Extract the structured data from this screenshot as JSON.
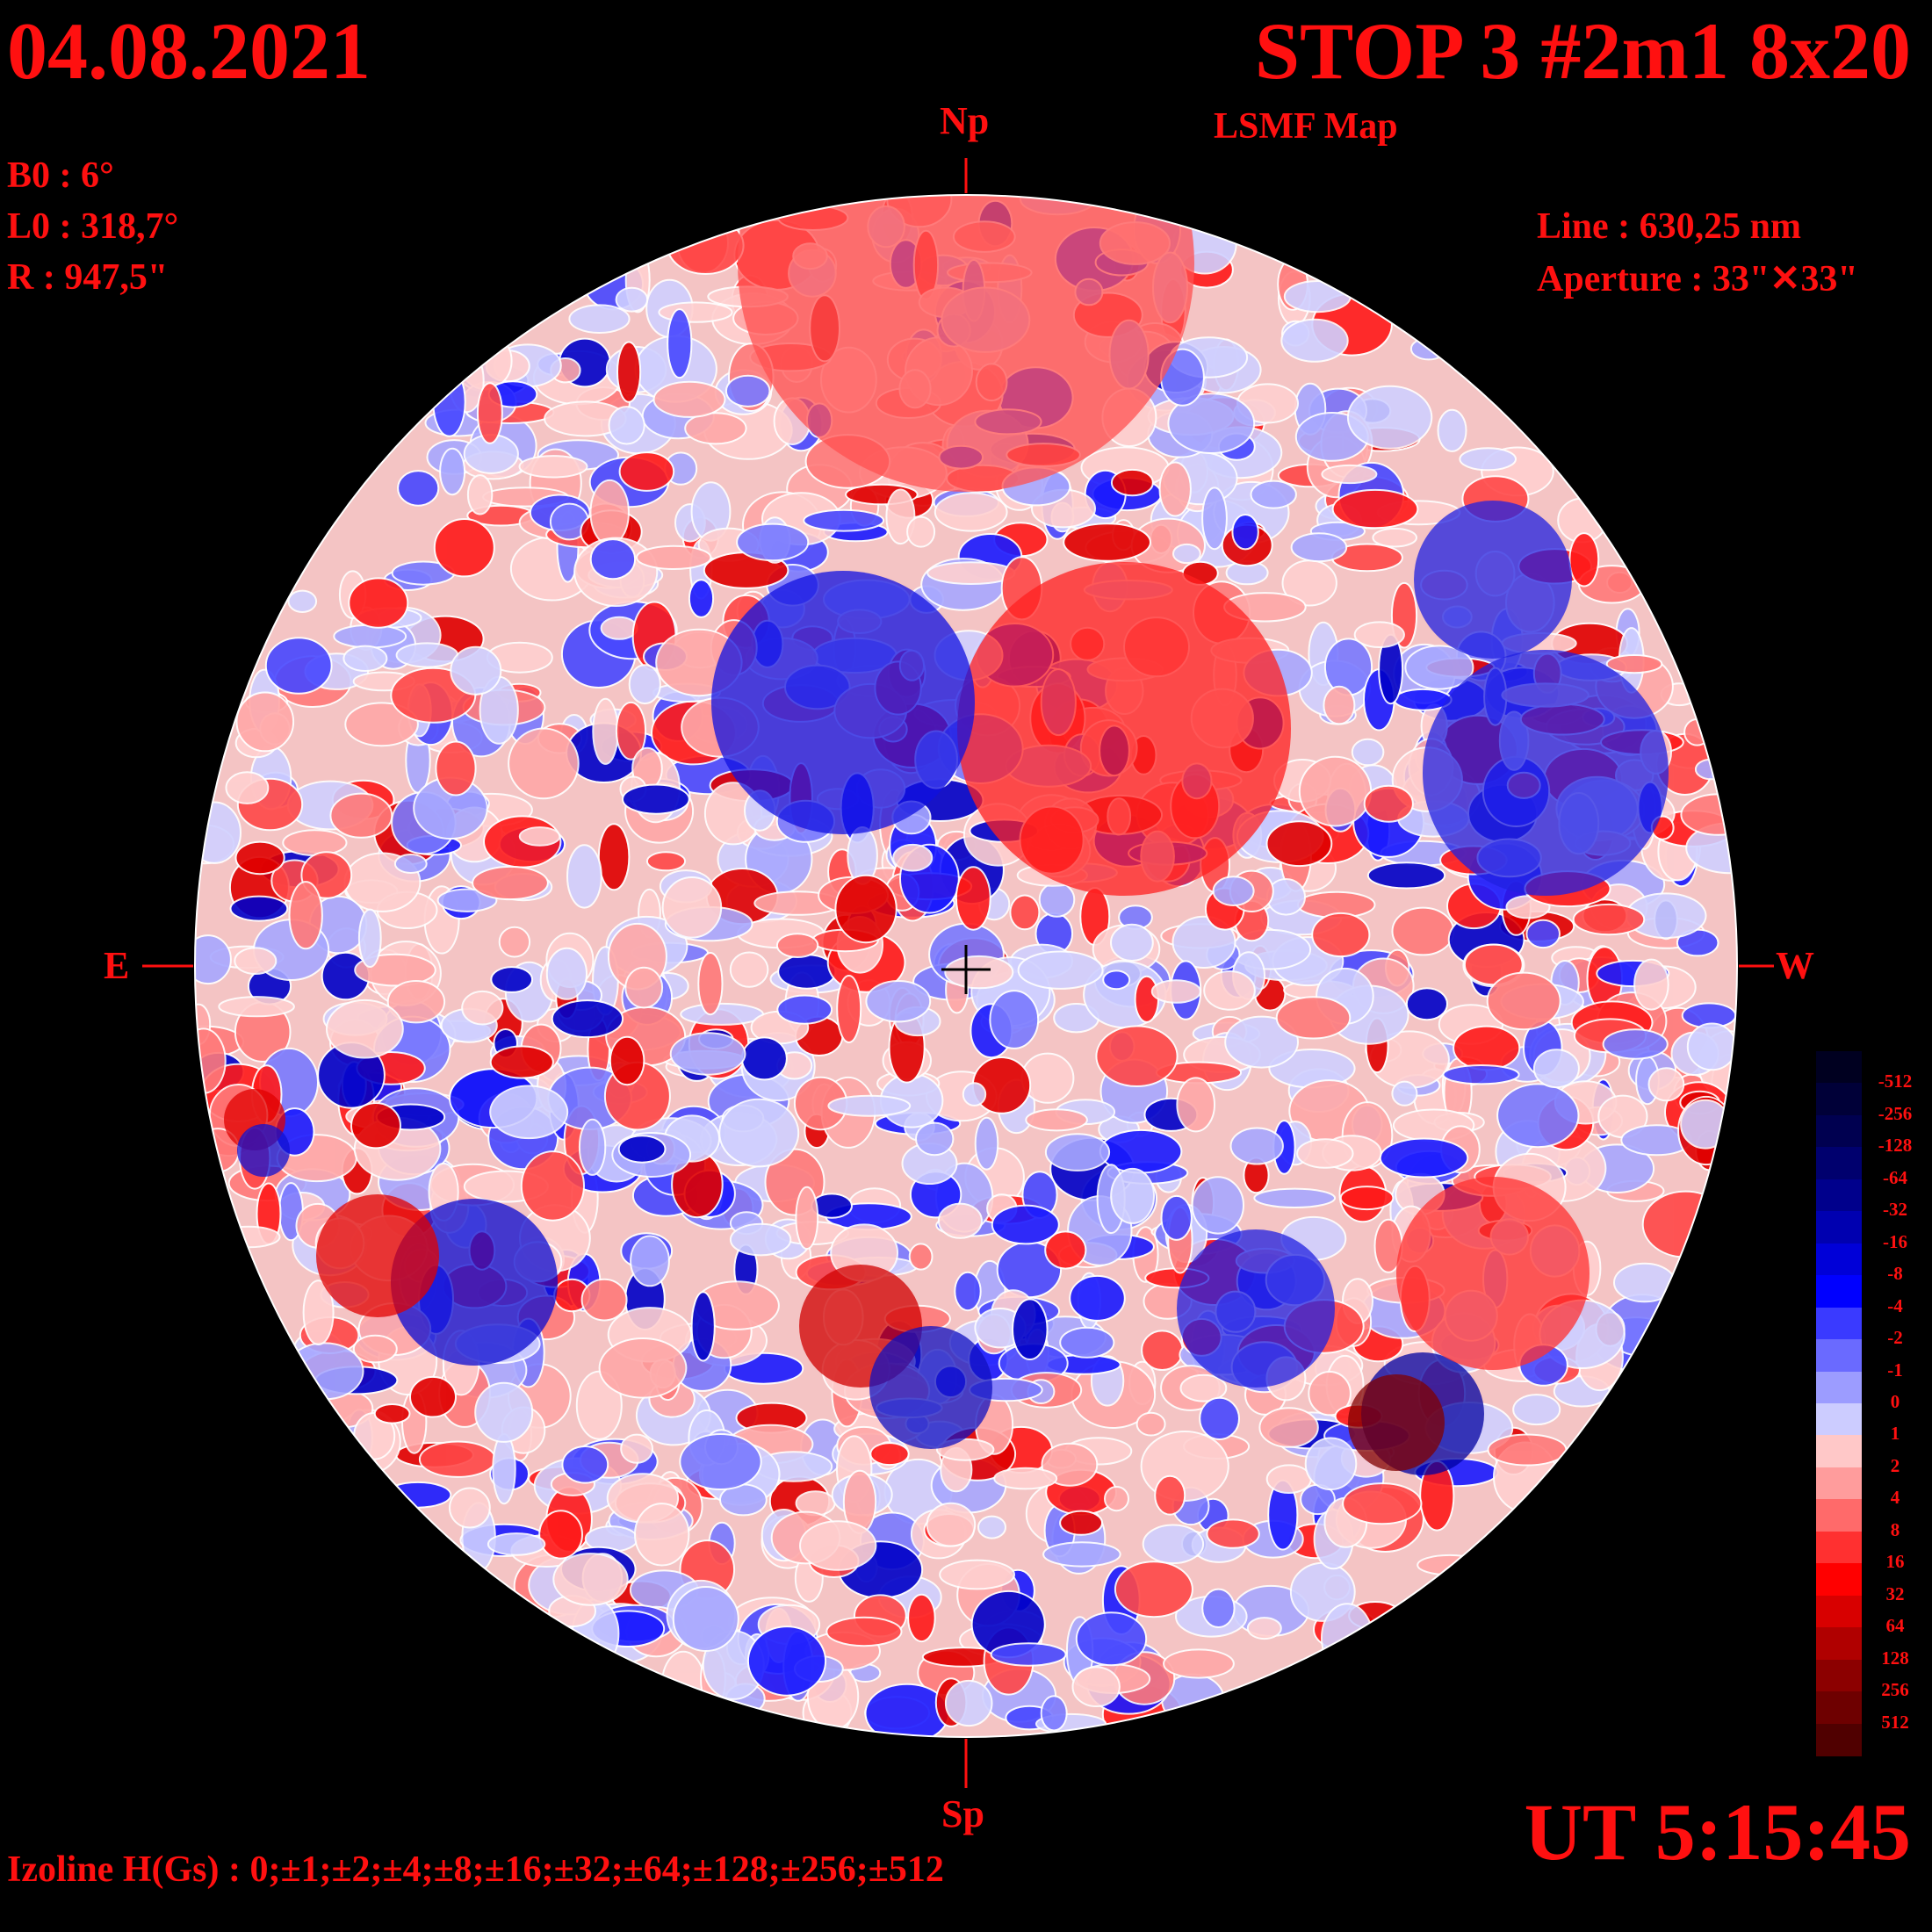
{
  "header": {
    "date": "04.08.2021",
    "title": "STOP 3 #2m1 8x20",
    "subtitle": "LSMF  Map"
  },
  "solar_parameters": {
    "b0": "B0 : 6°",
    "l0": "L0 : 318,7°",
    "r": "R  : 947,5\""
  },
  "observation": {
    "line": "Line :  630,25 nm",
    "aperture": "Aperture : 33\"✕33\""
  },
  "directions": {
    "north": "Np",
    "south": "Sp",
    "east": "E",
    "west": "W"
  },
  "time": "UT 5:15:45",
  "izoline": "Izoline H(Gs) : 0;±1;±2;±4;±8;±16;±32;±64;±128;±256;±512",
  "colorbar": {
    "labels": [
      "-512",
      "-256",
      "-128",
      "-64",
      "-32",
      "-16",
      "-8",
      "-4",
      "-2",
      "-1",
      "0",
      "1",
      "2",
      "4",
      "8",
      "16",
      "32",
      "64",
      "128",
      "256",
      "512"
    ],
    "colors": [
      "#000020",
      "#000038",
      "#000050",
      "#00006e",
      "#00008c",
      "#0000b0",
      "#0000d8",
      "#0000ff",
      "#3a3aff",
      "#6a6aff",
      "#9c9cff",
      "#ccccff",
      "#ffc8c8",
      "#ff9c9c",
      "#ff6a6a",
      "#ff3030",
      "#ff0000",
      "#d80000",
      "#b00000",
      "#8c0000",
      "#6e0000",
      "#500000"
    ]
  },
  "map": {
    "colors": {
      "background": "#000000",
      "isoline": "#ffffff",
      "marker": "#ff1010",
      "center_cross": "#000000"
    },
    "field_type": "line-of-sight magnetic field contour map"
  }
}
